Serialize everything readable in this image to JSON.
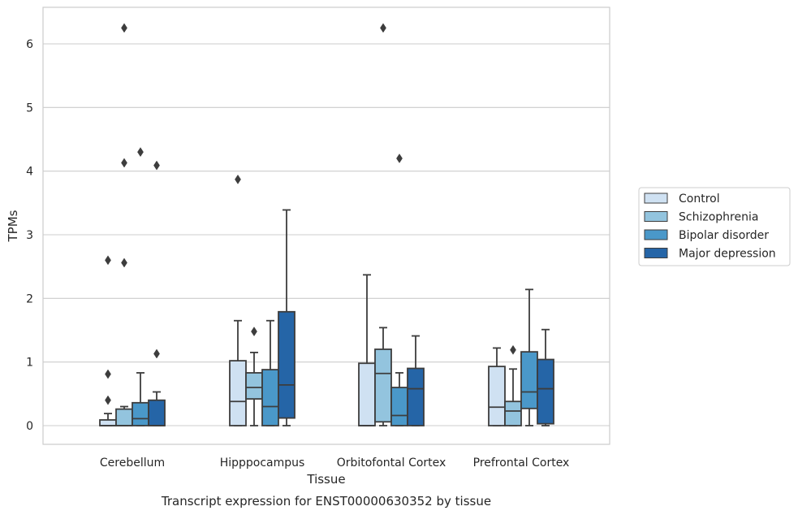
{
  "chart_data": {
    "type": "box",
    "title": "",
    "caption": "Transcript expression for ENST00000630352 by tissue",
    "xlabel": "Tissue",
    "ylabel": "TPMs",
    "ylim": [
      -0.3,
      6.6
    ],
    "yticks": [
      0,
      1,
      2,
      3,
      4,
      5,
      6
    ],
    "grid": "horizontal",
    "legend_position": "right",
    "categories": [
      "Cerebellum",
      "Hipppocampus",
      "Orbitofontal Cortex",
      "Prefrontal Cortex"
    ],
    "series": [
      {
        "name": "Control",
        "color": "#cfe1f2",
        "boxes": [
          {
            "q1": 0.0,
            "median": 0.0,
            "q3": 0.09,
            "whisker_low": 0.0,
            "whisker_high": 0.19,
            "outliers": [
              0.4,
              0.81,
              2.6
            ]
          },
          {
            "q1": 0.0,
            "median": 0.38,
            "q3": 1.02,
            "whisker_low": 0.0,
            "whisker_high": 1.65,
            "outliers": [
              3.87
            ]
          },
          {
            "q1": 0.0,
            "median": 0.0,
            "q3": 0.98,
            "whisker_low": 0.0,
            "whisker_high": 2.37,
            "outliers": []
          },
          {
            "q1": 0.0,
            "median": 0.29,
            "q3": 0.93,
            "whisker_low": 0.0,
            "whisker_high": 1.22,
            "outliers": []
          }
        ]
      },
      {
        "name": "Schizophrenia",
        "color": "#93c4de",
        "boxes": [
          {
            "q1": 0.0,
            "median": 0.0,
            "q3": 0.26,
            "whisker_low": 0.0,
            "whisker_high": 0.3,
            "outliers": [
              2.56,
              4.13,
              6.25
            ]
          },
          {
            "q1": 0.42,
            "median": 0.6,
            "q3": 0.83,
            "whisker_low": 0.0,
            "whisker_high": 1.15,
            "outliers": [
              1.48
            ]
          },
          {
            "q1": 0.06,
            "median": 0.82,
            "q3": 1.2,
            "whisker_low": 0.0,
            "whisker_high": 1.54,
            "outliers": [
              6.25
            ]
          },
          {
            "q1": 0.0,
            "median": 0.23,
            "q3": 0.38,
            "whisker_low": 0.0,
            "whisker_high": 0.89,
            "outliers": [
              1.19
            ]
          }
        ]
      },
      {
        "name": "Bipolar disorder",
        "color": "#4a98c9",
        "boxes": [
          {
            "q1": 0.0,
            "median": 0.11,
            "q3": 0.36,
            "whisker_low": 0.0,
            "whisker_high": 0.83,
            "outliers": [
              4.3
            ]
          },
          {
            "q1": 0.0,
            "median": 0.3,
            "q3": 0.88,
            "whisker_low": 0.0,
            "whisker_high": 1.65,
            "outliers": []
          },
          {
            "q1": 0.0,
            "median": 0.16,
            "q3": 0.6,
            "whisker_low": 0.0,
            "whisker_high": 0.83,
            "outliers": [
              4.2
            ]
          },
          {
            "q1": 0.27,
            "median": 0.53,
            "q3": 1.16,
            "whisker_low": 0.0,
            "whisker_high": 2.14,
            "outliers": []
          }
        ]
      },
      {
        "name": "Major depression",
        "color": "#2565a7",
        "boxes": [
          {
            "q1": 0.0,
            "median": 0.0,
            "q3": 0.4,
            "whisker_low": 0.0,
            "whisker_high": 0.53,
            "outliers": [
              1.13,
              4.09
            ]
          },
          {
            "q1": 0.12,
            "median": 0.64,
            "q3": 1.79,
            "whisker_low": 0.0,
            "whisker_high": 3.39,
            "outliers": []
          },
          {
            "q1": 0.0,
            "median": 0.58,
            "q3": 0.9,
            "whisker_low": 0.0,
            "whisker_high": 1.41,
            "outliers": []
          },
          {
            "q1": 0.03,
            "median": 0.58,
            "q3": 1.04,
            "whisker_low": 0.0,
            "whisker_high": 1.51,
            "outliers": []
          }
        ]
      }
    ]
  }
}
